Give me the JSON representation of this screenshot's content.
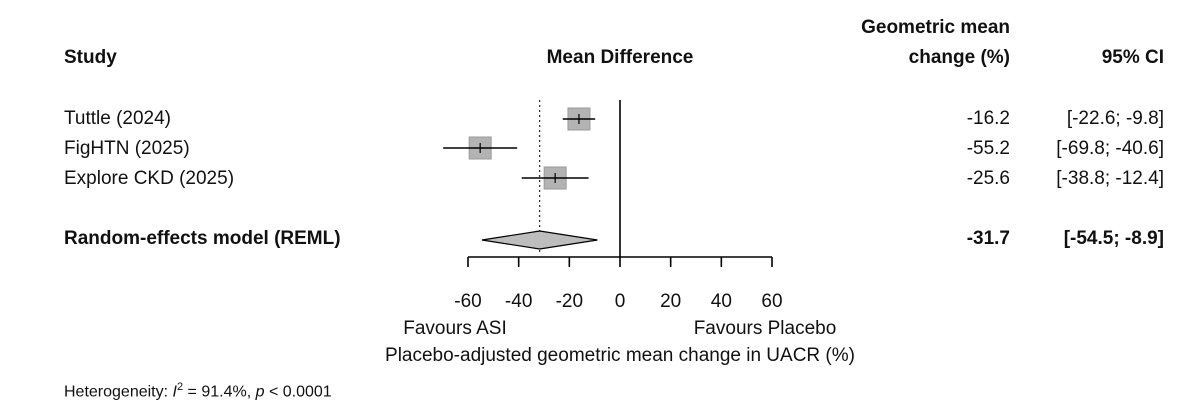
{
  "headers": {
    "study": "Study",
    "mean_difference": "Mean Difference",
    "gm_line1": "Geometric mean",
    "gm_line2": "change (%)",
    "ci": "95% CI"
  },
  "studies": [
    {
      "name": "Tuttle (2024)",
      "estimate_text": "-16.2",
      "ci_text": "[-22.6;  -9.8]"
    },
    {
      "name": "FigHTN (2025)",
      "estimate_text": "-55.2",
      "ci_text": "[-69.8; -40.6]"
    },
    {
      "name": "Explore CKD (2025)",
      "estimate_text": "-25.6",
      "ci_text": "[-38.8; -12.4]"
    }
  ],
  "pooled": {
    "name": "Random-effects model (REML)",
    "estimate_text": "-31.7",
    "ci_text": "[-54.5;  -8.9]"
  },
  "axis": {
    "tick_labels": [
      "-60",
      "-40",
      "-20",
      "0",
      "20",
      "40",
      "60"
    ],
    "favours_left": "Favours ASI",
    "favours_right": "Favours Placebo",
    "xlabel": "Placebo-adjusted geometric mean change in UACR (%)"
  },
  "heterogeneity": {
    "label": "Heterogeneity:",
    "i2_symbol": "I",
    "i2_sup": "2",
    "i2_value": " = 91.4%, ",
    "p_symbol": "p",
    "p_value": " < 0.0001"
  },
  "colors": {
    "square": "#b3b3b3",
    "square_border": "#9a9a9a",
    "diamond": "#bdbdbd",
    "line": "#000000"
  },
  "chart_data": {
    "type": "forest",
    "xlim": [
      -60,
      60
    ],
    "ticks": [
      -60,
      -40,
      -20,
      0,
      20,
      40,
      60
    ],
    "null_line": 0,
    "pooled_reference_line": -31.7,
    "xlabel": "Placebo-adjusted geometric mean change in UACR (%)",
    "studies": [
      {
        "label": "Tuttle (2024)",
        "estimate": -16.2,
        "lower": -22.6,
        "upper": -9.8
      },
      {
        "label": "FigHTN (2025)",
        "estimate": -55.2,
        "lower": -69.8,
        "upper": -40.6
      },
      {
        "label": "Explore CKD (2025)",
        "estimate": -25.6,
        "lower": -38.8,
        "upper": -12.4
      }
    ],
    "pooled": {
      "label": "Random-effects model (REML)",
      "estimate": -31.7,
      "lower": -54.5,
      "upper": -8.9
    },
    "heterogeneity": {
      "I2_percent": 91.4,
      "p": "< 0.0001"
    }
  }
}
